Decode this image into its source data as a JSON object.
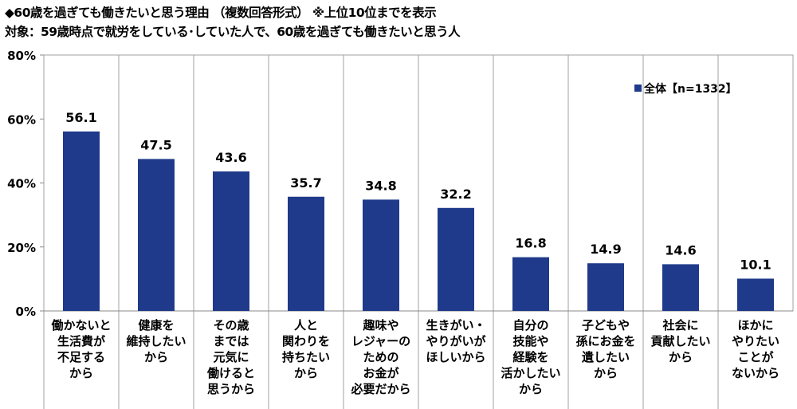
{
  "title": "◆60歳を過ぎても働きたいと思う理由 （複数回答形式） ※上位10位までを表示",
  "subtitle": "対象：59歳時点で就労をしている･していた人で、60歳を過ぎても働きたいと思う人",
  "chart_data": {
    "type": "bar",
    "categories": [
      [
        "働かないと",
        "生活費が",
        "不足する",
        "から"
      ],
      [
        "健康を",
        "維持したい",
        "から"
      ],
      [
        "その歳",
        "までは",
        "元気に",
        "働けると",
        "思うから"
      ],
      [
        "人と",
        "関わりを",
        "持ちたい",
        "から"
      ],
      [
        "趣味や",
        "レジャーの",
        "ための",
        "お金が",
        "必要だから"
      ],
      [
        "生きがい・",
        "やりがいが",
        "ほしいから"
      ],
      [
        "自分の",
        "技能や",
        "経験を",
        "活かしたい",
        "から"
      ],
      [
        "子どもや",
        "孫にお金を",
        "遺したい",
        "から"
      ],
      [
        "社会に",
        "貢献したい",
        "から"
      ],
      [
        "ほかに",
        "やりたい",
        "ことが",
        "ないから"
      ]
    ],
    "series": [
      {
        "name": "全体【n=1332】",
        "values": [
          56.1,
          47.5,
          43.6,
          35.7,
          34.8,
          32.2,
          16.8,
          14.9,
          14.6,
          10.1
        ],
        "color": "#1f3a8a"
      }
    ],
    "yticks": [
      "0%",
      "20%",
      "40%",
      "60%",
      "80%"
    ],
    "ylim": [
      0,
      80
    ],
    "grid": false,
    "legend": "top-right"
  }
}
